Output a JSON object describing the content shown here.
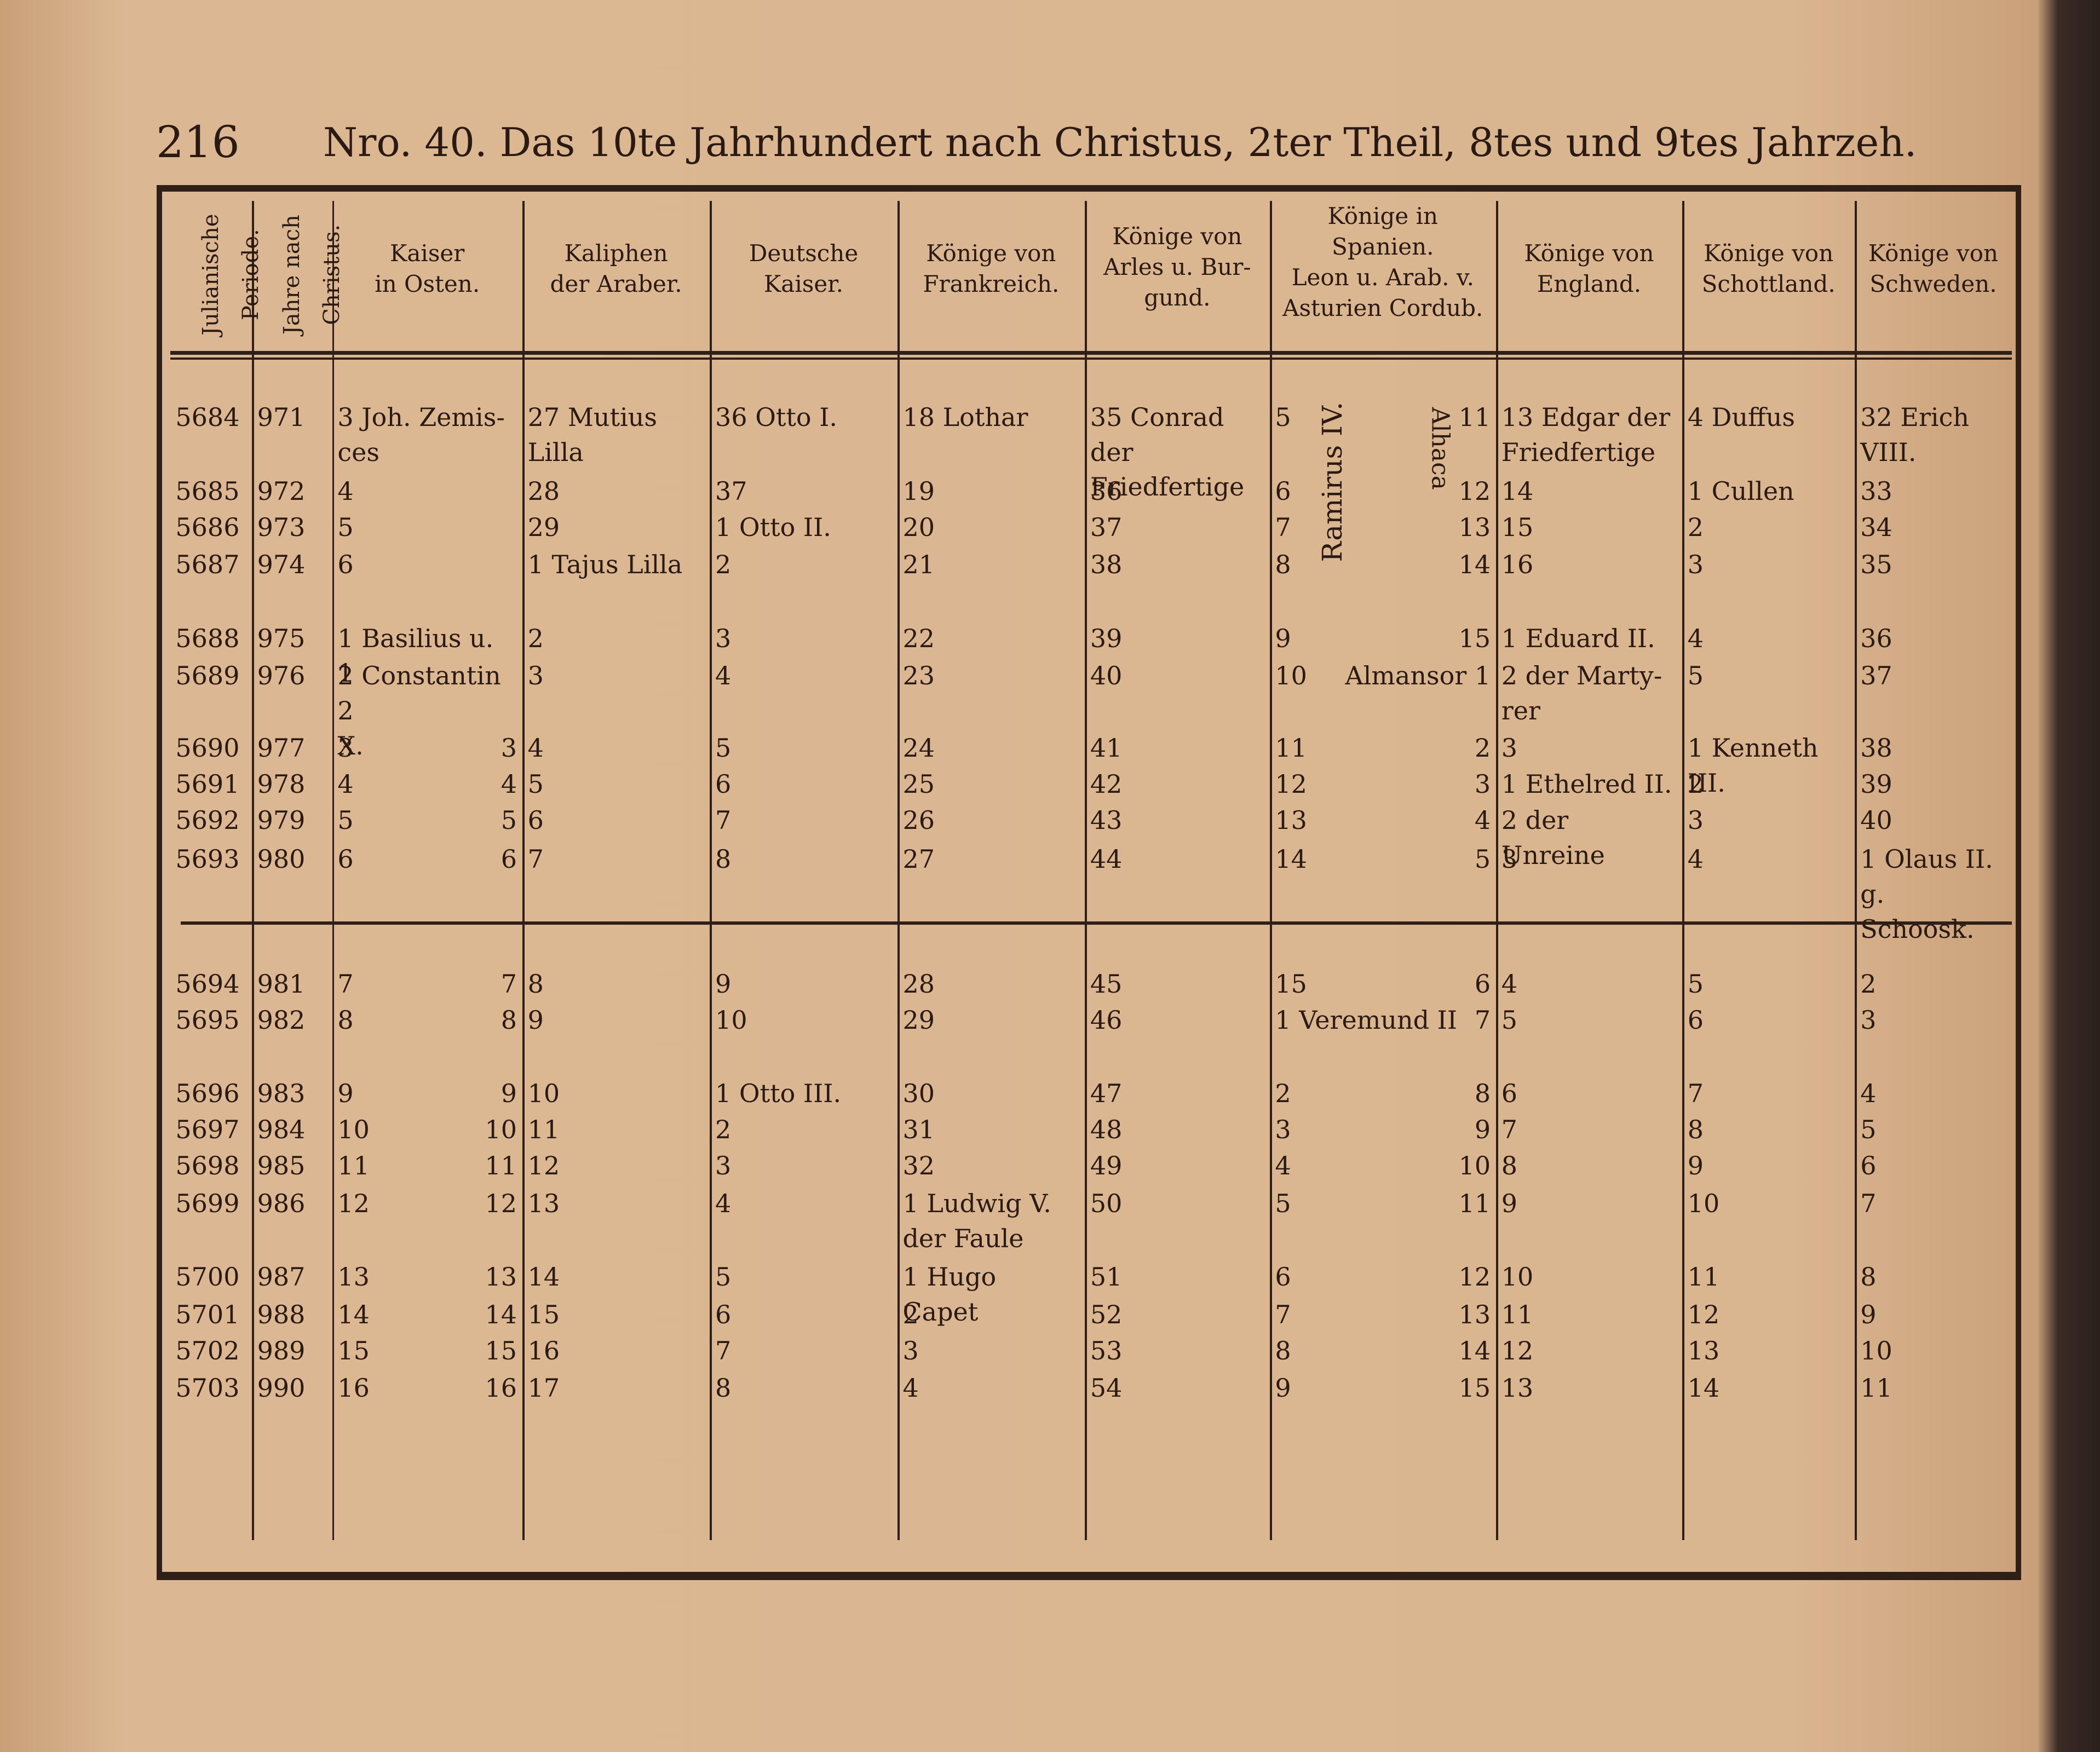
{
  "header": {
    "page_number": "216",
    "title": "Nro. 40. Das 10te Jahrhundert nach Christus, 2ter Theil, 8tes und 9tes Jahrzeh."
  },
  "table": {
    "columns": [
      "Julianische Periode.",
      "Jahre nach Christus.",
      "Kaiser\nin Osten.",
      "Kaliphen\nder Araber.",
      "Deutsche\nKaiser.",
      "Könige von\nFrankreich.",
      "Könige von\nArles u. Bur-\ngund.",
      "Könige in\nSpanien.\nLeon u. Arab. v.\nAsturien Cordub.",
      "Könige von\nEngland.",
      "Könige von\nSchottland.",
      "Könige von\nSchweden."
    ],
    "annotations": [
      "Ramirus IV.",
      "Alhaca"
    ],
    "rows": [
      [
        "5684",
        "971",
        "3 Joh. Zemis-\nces",
        null,
        "27 Mutius\nLilla",
        "36 Otto I.",
        "18 Lothar",
        "35 Conrad der\nFriedfertige",
        "5",
        "11",
        "13 Edgar der\nFriedfertige",
        "4 Duffus",
        "32 Erich\nVIII."
      ],
      [
        "5685",
        "972",
        "4",
        null,
        "28",
        "37",
        "19",
        "36",
        "6",
        "12",
        "14",
        "1 Cullen",
        "33"
      ],
      [
        "5686",
        "973",
        "5",
        null,
        "29",
        "1 Otto II.",
        "20",
        "37",
        "7",
        "13",
        "15",
        "2",
        "34"
      ],
      [
        "5687",
        "974",
        "6",
        null,
        "1 Tajus Lilla",
        "2",
        "21",
        "38",
        "8",
        "14",
        "16",
        "3",
        "35"
      ],
      [
        "5688",
        "975",
        "1 Basilius u. 1",
        null,
        "2",
        "3",
        "22",
        "39",
        "9",
        "15",
        "1 Eduard II.",
        "4",
        "36"
      ],
      [
        "5689",
        "976",
        "2 Constantin 2\nX.",
        null,
        "3",
        "4",
        "23",
        "40",
        "10",
        "Almansor 1",
        "2 der Marty-\nrer",
        "5",
        "37"
      ],
      [
        "5690",
        "977",
        "3",
        "3",
        "4",
        "5",
        "24",
        "41",
        "11",
        "2",
        "3",
        "1 Kenneth\nIII.",
        "38"
      ],
      [
        "5691",
        "978",
        "4",
        "4",
        "5",
        "6",
        "25",
        "42",
        "12",
        "3",
        "1 Ethelred II.",
        "2",
        "39"
      ],
      [
        "5692",
        "979",
        "5",
        "5",
        "6",
        "7",
        "26",
        "43",
        "13",
        "4",
        "2 der Unreine",
        "3",
        "40"
      ],
      [
        "5693",
        "980",
        "6",
        "6",
        "7",
        "8",
        "27",
        "44",
        "14",
        "5",
        "3",
        "4",
        "1 Olaus II.\ng. Schoosk."
      ],
      [
        "5694",
        "981",
        "7",
        "7",
        "8",
        "9",
        "28",
        "45",
        "15",
        "6",
        "4",
        "5",
        "2"
      ],
      [
        "5695",
        "982",
        "8",
        "8",
        "9",
        "10",
        "29",
        "46",
        "1 Veremund II",
        "7",
        "5",
        "6",
        "3"
      ],
      [
        "5696",
        "983",
        "9",
        "9",
        "10",
        "1 Otto III.",
        "30",
        "47",
        "2",
        "8",
        "6",
        "7",
        "4"
      ],
      [
        "5697",
        "984",
        "10",
        "10",
        "11",
        "2",
        "31",
        "48",
        "3",
        "9",
        "7",
        "8",
        "5"
      ],
      [
        "5698",
        "985",
        "11",
        "11",
        "12",
        "3",
        "32",
        "49",
        "4",
        "10",
        "8",
        "9",
        "6"
      ],
      [
        "5699",
        "986",
        "12",
        "12",
        "13",
        "4",
        "1 Ludwig V.\nder Faule",
        "50",
        "5",
        "11",
        "9",
        "10",
        "7"
      ],
      [
        "5700",
        "987",
        "13",
        "13",
        "14",
        "5",
        "1 Hugo Capet",
        "51",
        "6",
        "12",
        "10",
        "11",
        "8"
      ],
      [
        "5701",
        "988",
        "14",
        "14",
        "15",
        "6",
        "2",
        "52",
        "7",
        "13",
        "11",
        "12",
        "9"
      ],
      [
        "5702",
        "989",
        "15",
        "15",
        "16",
        "7",
        "3",
        "53",
        "8",
        "14",
        "12",
        "13",
        "10"
      ],
      [
        "5703",
        "990",
        "16",
        "16",
        "17",
        "8",
        "4",
        "54",
        "9",
        "15",
        "13",
        "14",
        "11"
      ]
    ]
  }
}
